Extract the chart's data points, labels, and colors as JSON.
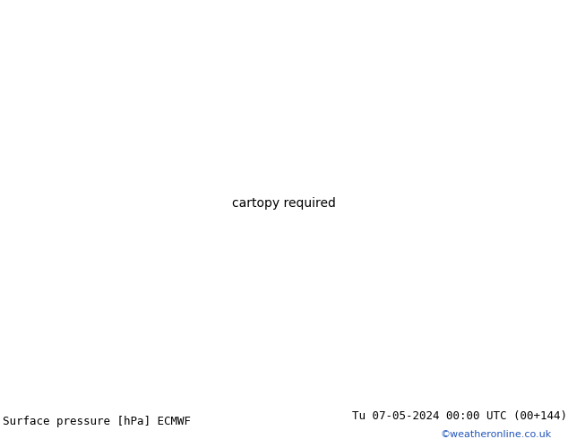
{
  "title_left": "Surface pressure [hPa] ECMWF",
  "title_right": "Tu 07-05-2024 00:00 UTC (00+144)",
  "watermark": "©weatheronline.co.uk",
  "land_color": "#c8f0a0",
  "sea_color": "#d8d8d8",
  "border_color": "#888888",
  "coastline_color": "#888888",
  "isobar_red": "#dd1100",
  "isobar_blue": "#0044cc",
  "isobar_black": "#111111",
  "label_color_red": "#dd1100",
  "bottom_bar_color": "#c8f0a0",
  "watermark_color": "#2255bb",
  "title_fontsize": 9,
  "watermark_fontsize": 8,
  "figsize": [
    6.34,
    4.9
  ],
  "dpi": 100,
  "lon_min": -11.0,
  "lon_max": 18.0,
  "lat_min": 44.0,
  "lat_max": 60.5,
  "label_1015_lon": 1.0,
  "label_1015_lat": 44.8,
  "label_1016_lon": 13.5,
  "label_1016_lat": 44.8
}
